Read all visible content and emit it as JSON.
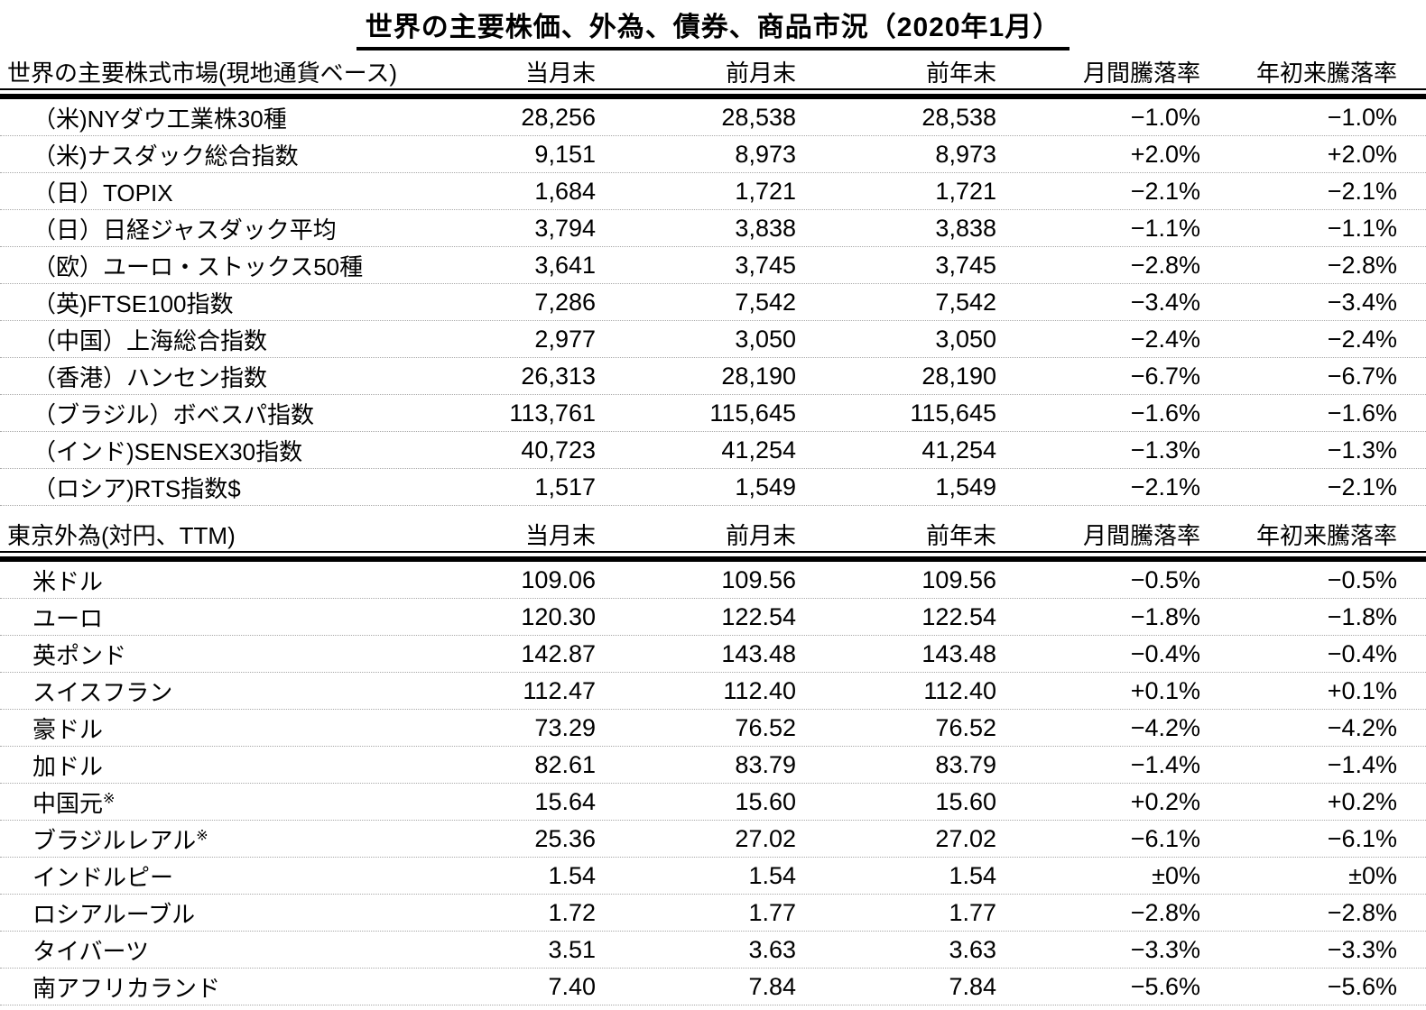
{
  "title": "世界の主要株価、外為、債券、商品市況（2020年1月）",
  "sections": [
    {
      "name": "世界の主要株式市場(現地通貨ベース)",
      "columns": [
        "当月末",
        "前月末",
        "前年末",
        "月間騰落率",
        "年初来騰落率"
      ],
      "rows": [
        {
          "label": "（米)NYダウ工業株30種",
          "sup": "",
          "values": [
            "28,256",
            "28,538",
            "28,538",
            "−1.0%",
            "−1.0%"
          ]
        },
        {
          "label": "（米)ナスダック総合指数",
          "sup": "",
          "values": [
            "9,151",
            "8,973",
            "8,973",
            "+2.0%",
            "+2.0%"
          ]
        },
        {
          "label": "（日）TOPIX",
          "sup": "",
          "values": [
            "1,684",
            "1,721",
            "1,721",
            "−2.1%",
            "−2.1%"
          ]
        },
        {
          "label": "（日）日経ジャスダック平均",
          "sup": "",
          "values": [
            "3,794",
            "3,838",
            "3,838",
            "−1.1%",
            "−1.1%"
          ]
        },
        {
          "label": "（欧）ユーロ・ストックス50種",
          "sup": "",
          "values": [
            "3,641",
            "3,745",
            "3,745",
            "−2.8%",
            "−2.8%"
          ]
        },
        {
          "label": "（英)FTSE100指数",
          "sup": "",
          "values": [
            "7,286",
            "7,542",
            "7,542",
            "−3.4%",
            "−3.4%"
          ]
        },
        {
          "label": "（中国）上海総合指数",
          "sup": "",
          "values": [
            "2,977",
            "3,050",
            "3,050",
            "−2.4%",
            "−2.4%"
          ]
        },
        {
          "label": "（香港）ハンセン指数",
          "sup": "",
          "values": [
            "26,313",
            "28,190",
            "28,190",
            "−6.7%",
            "−6.7%"
          ]
        },
        {
          "label": "（ブラジル）ボベスパ指数",
          "sup": "",
          "values": [
            "113,761",
            "115,645",
            "115,645",
            "−1.6%",
            "−1.6%"
          ]
        },
        {
          "label": "（インド)SENSEX30指数",
          "sup": "",
          "values": [
            "40,723",
            "41,254",
            "41,254",
            "−1.3%",
            "−1.3%"
          ]
        },
        {
          "label": "（ロシア)RTS指数$",
          "sup": "",
          "values": [
            "1,517",
            "1,549",
            "1,549",
            "−2.1%",
            "−2.1%"
          ]
        }
      ]
    },
    {
      "name": "東京外為(対円、TTM)",
      "columns": [
        "当月末",
        "前月末",
        "前年末",
        "月間騰落率",
        "年初来騰落率"
      ],
      "rows": [
        {
          "label": "米ドル",
          "sup": "",
          "values": [
            "109.06",
            "109.56",
            "109.56",
            "−0.5%",
            "−0.5%"
          ]
        },
        {
          "label": "ユーロ",
          "sup": "",
          "values": [
            "120.30",
            "122.54",
            "122.54",
            "−1.8%",
            "−1.8%"
          ]
        },
        {
          "label": "英ポンド",
          "sup": "",
          "values": [
            "142.87",
            "143.48",
            "143.48",
            "−0.4%",
            "−0.4%"
          ]
        },
        {
          "label": "スイスフラン",
          "sup": "",
          "values": [
            "112.47",
            "112.40",
            "112.40",
            "+0.1%",
            "+0.1%"
          ]
        },
        {
          "label": "豪ドル",
          "sup": "",
          "values": [
            "73.29",
            "76.52",
            "76.52",
            "−4.2%",
            "−4.2%"
          ]
        },
        {
          "label": "加ドル",
          "sup": "",
          "values": [
            "82.61",
            "83.79",
            "83.79",
            "−1.4%",
            "−1.4%"
          ]
        },
        {
          "label": "中国元",
          "sup": "※",
          "values": [
            "15.64",
            "15.60",
            "15.60",
            "+0.2%",
            "+0.2%"
          ]
        },
        {
          "label": "ブラジルレアル",
          "sup": "※",
          "values": [
            "25.36",
            "27.02",
            "27.02",
            "−6.1%",
            "−6.1%"
          ]
        },
        {
          "label": "インドルピー",
          "sup": "",
          "values": [
            "1.54",
            "1.54",
            "1.54",
            "±0%",
            "±0%"
          ]
        },
        {
          "label": "ロシアルーブル",
          "sup": "",
          "values": [
            "1.72",
            "1.77",
            "1.77",
            "−2.8%",
            "−2.8%"
          ]
        },
        {
          "label": "タイバーツ",
          "sup": "",
          "values": [
            "3.51",
            "3.63",
            "3.63",
            "−3.3%",
            "−3.3%"
          ]
        },
        {
          "label": "南アフリカランド",
          "sup": "",
          "values": [
            "7.40",
            "7.84",
            "7.84",
            "−5.6%",
            "−5.6%"
          ]
        }
      ]
    }
  ]
}
